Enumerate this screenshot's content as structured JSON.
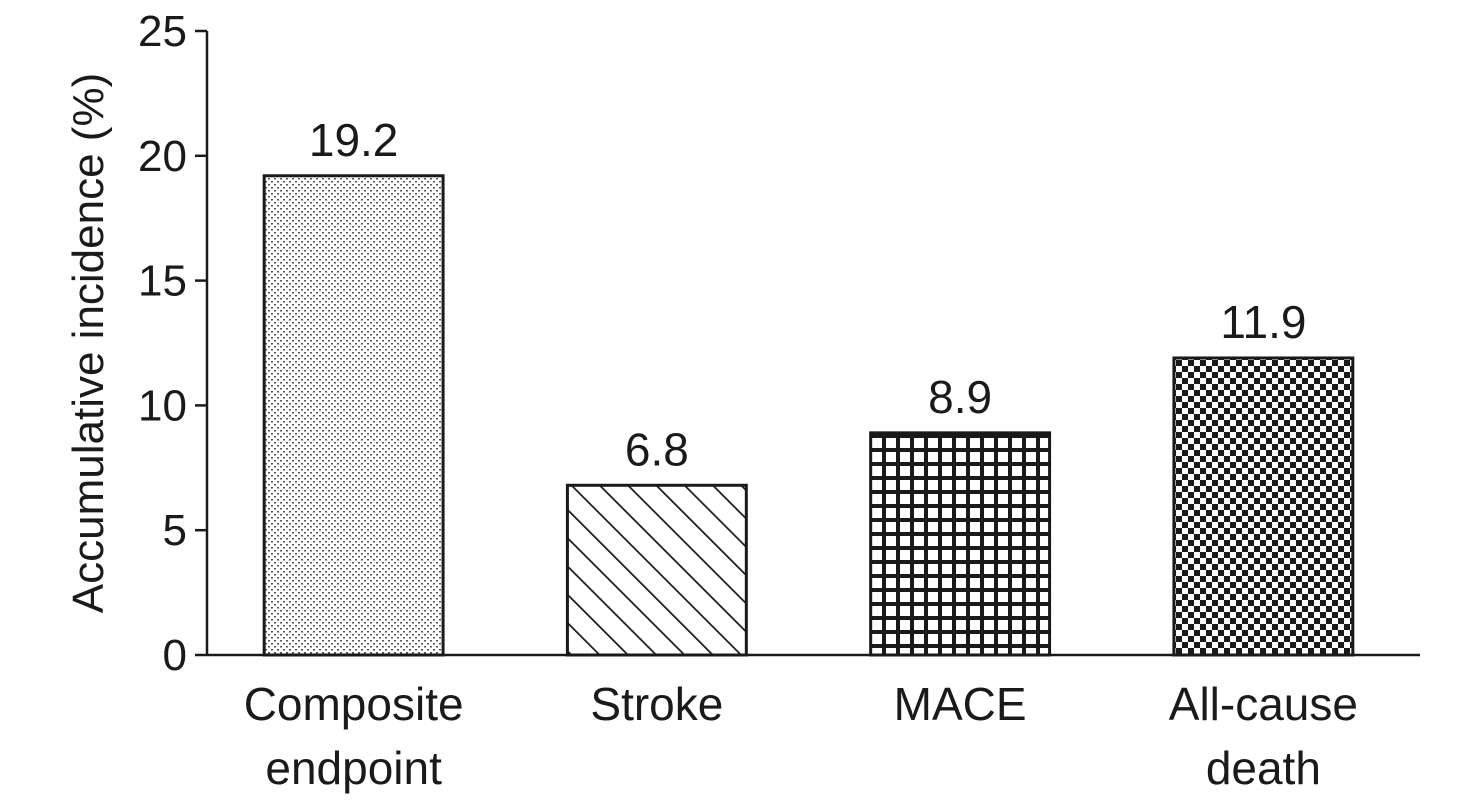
{
  "chart_data": {
    "type": "bar",
    "title": "",
    "ylabel": "Accumulative incidence (%)",
    "xlabel": "",
    "ylim": [
      0,
      25
    ],
    "yticks": [
      0,
      5,
      10,
      15,
      20,
      25
    ],
    "grid": false,
    "categories": [
      {
        "lines": [
          "Composite",
          "endpoint"
        ]
      },
      {
        "lines": [
          "Stroke"
        ]
      },
      {
        "lines": [
          "MACE"
        ]
      },
      {
        "lines": [
          "All-cause",
          "death"
        ]
      }
    ],
    "values": [
      19.2,
      6.8,
      8.9,
      11.9
    ],
    "data_labels": [
      "19.2",
      "6.8",
      "8.9",
      "11.9"
    ],
    "patterns": [
      "dots",
      "diagonal-hatch",
      "grid",
      "checker"
    ],
    "colors": {
      "ink": "#1a1a1a",
      "background": "#ffffff"
    }
  }
}
